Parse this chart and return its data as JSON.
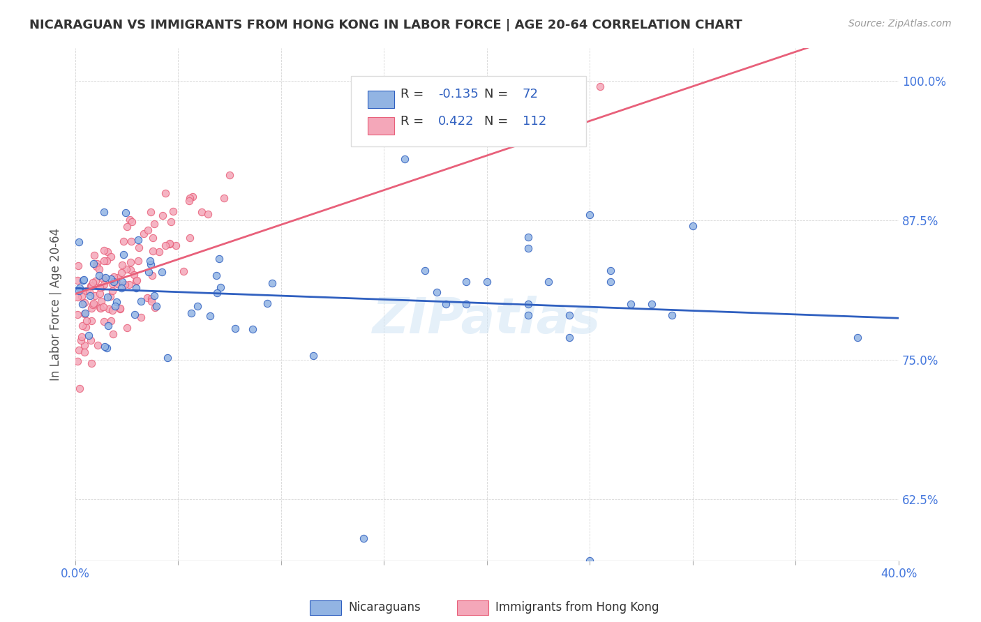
{
  "title": "NICARAGUAN VS IMMIGRANTS FROM HONG KONG IN LABOR FORCE | AGE 20-64 CORRELATION CHART",
  "source": "Source: ZipAtlas.com",
  "ylabel": "In Labor Force | Age 20-64",
  "xlim": [
    0.0,
    0.4
  ],
  "ylim": [
    0.57,
    1.03
  ],
  "yticks": [
    0.625,
    0.75,
    0.875,
    1.0
  ],
  "ytick_labels": [
    "62.5%",
    "75.0%",
    "87.5%",
    "100.0%"
  ],
  "xticks": [
    0.0,
    0.05,
    0.1,
    0.15,
    0.2,
    0.25,
    0.3,
    0.35,
    0.4
  ],
  "xtick_labels": [
    "0.0%",
    "",
    "",
    "",
    "",
    "",
    "",
    "",
    "40.0%"
  ],
  "blue_R": "-0.135",
  "blue_N": "72",
  "pink_R": "0.422",
  "pink_N": "112",
  "blue_color": "#92b4e3",
  "pink_color": "#f4a7b9",
  "blue_line_color": "#3060c0",
  "pink_line_color": "#e8607a",
  "title_color": "#333333",
  "axis_color": "#4477dd"
}
